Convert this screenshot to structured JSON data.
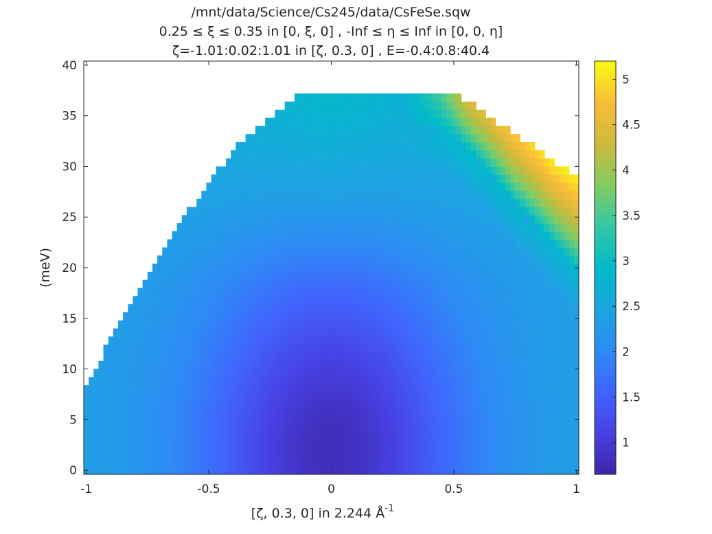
{
  "chart_data": {
    "type": "heatmap",
    "title": [
      "/mnt/data/Science/Cs245/data/CsFeSe.sqw",
      "0.25 ≤ ξ ≤ 0.35 in [0, ξ, 0] , -Inf ≤ η ≤ Inf in [0, 0, η]",
      "ζ=-1.01:0.02:1.01 in [ζ, 0.3, 0] , E=-0.4:0.8:40.4"
    ],
    "xlabel": "[ζ, 0.3, 0] in 2.244 Å",
    "xlabel_superscript": "-1",
    "ylabel": "(meV)",
    "xlim": [
      -1.01,
      1.01
    ],
    "ylim": [
      -0.4,
      40.4
    ],
    "x_step": 0.02,
    "y_step": 0.8,
    "x_ticks": [
      -1,
      -0.5,
      0,
      0.5,
      1
    ],
    "x_tick_labels": [
      "-1",
      "-0.5",
      "0",
      "0.5",
      "1"
    ],
    "y_ticks": [
      0,
      5,
      10,
      15,
      20,
      25,
      30,
      35,
      40
    ],
    "y_tick_labels": [
      "0",
      "5",
      "10",
      "15",
      "20",
      "25",
      "30",
      "35",
      "40"
    ],
    "colorbar": {
      "colormap": "parula",
      "clim": [
        0.65,
        5.2
      ],
      "ticks": [
        1,
        1.5,
        2,
        2.5,
        3,
        3.5,
        4,
        4.5,
        5
      ],
      "tick_labels": [
        "1",
        "1.5",
        "2",
        "2.5",
        "3",
        "3.5",
        "4",
        "4.5",
        "5"
      ]
    },
    "coverage_upper_edge_meV": [
      {
        "x": -1.0,
        "e": 8.4
      },
      {
        "x": -0.9,
        "e": 13.0
      },
      {
        "x": -0.8,
        "e": 17.5
      },
      {
        "x": -0.7,
        "e": 21.5
      },
      {
        "x": -0.6,
        "e": 25.0
      },
      {
        "x": -0.5,
        "e": 28.4
      },
      {
        "x": -0.4,
        "e": 31.6
      },
      {
        "x": -0.3,
        "e": 34.0
      },
      {
        "x": -0.2,
        "e": 35.8
      },
      {
        "x": -0.1,
        "e": 37.5
      },
      {
        "x": 0.45,
        "e": 37.5
      },
      {
        "x": 0.55,
        "e": 36.6
      },
      {
        "x": 0.65,
        "e": 35.0
      },
      {
        "x": 0.75,
        "e": 33.0
      },
      {
        "x": 0.85,
        "e": 31.6
      },
      {
        "x": 0.95,
        "e": 29.8
      },
      {
        "x": 1.0,
        "e": 29.0
      }
    ],
    "intensity_description": {
      "minimum": {
        "x": 0.0,
        "e": 2.0,
        "value": 0.8
      },
      "background_at_edges": 2.4,
      "high_band": {
        "x_range": [
          0.3,
          1.0
        ],
        "value_range": [
          4.0,
          5.1
        ]
      }
    },
    "grid": false,
    "legend": "none"
  }
}
